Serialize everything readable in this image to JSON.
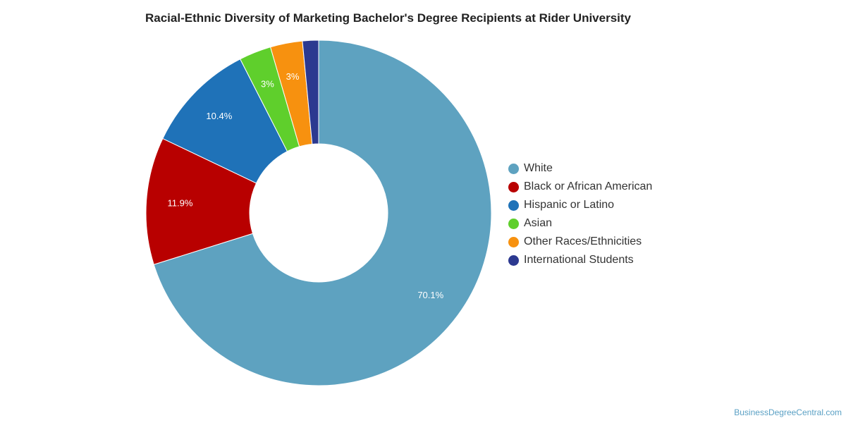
{
  "chart_data": {
    "type": "pie",
    "variant": "donut",
    "title": "Racial-Ethnic Diversity of Marketing Bachelor's Degree Recipients at Rider University",
    "categories": [
      "White",
      "Black or African American",
      "Hispanic or Latino",
      "Asian",
      "Other Races/Ethnicities",
      "International Students"
    ],
    "values": [
      70.1,
      11.9,
      10.4,
      3.0,
      3.0,
      1.5
    ],
    "data_labels": [
      "70.1%",
      "11.9%",
      "10.4%",
      "3%",
      "3%",
      ""
    ],
    "colors": [
      "#5ea2c0",
      "#b80000",
      "#1f72b8",
      "#5fcf2c",
      "#f7910f",
      "#2c3990"
    ],
    "legend_position": "right"
  },
  "watermark": "BusinessDegreeCentral.com"
}
